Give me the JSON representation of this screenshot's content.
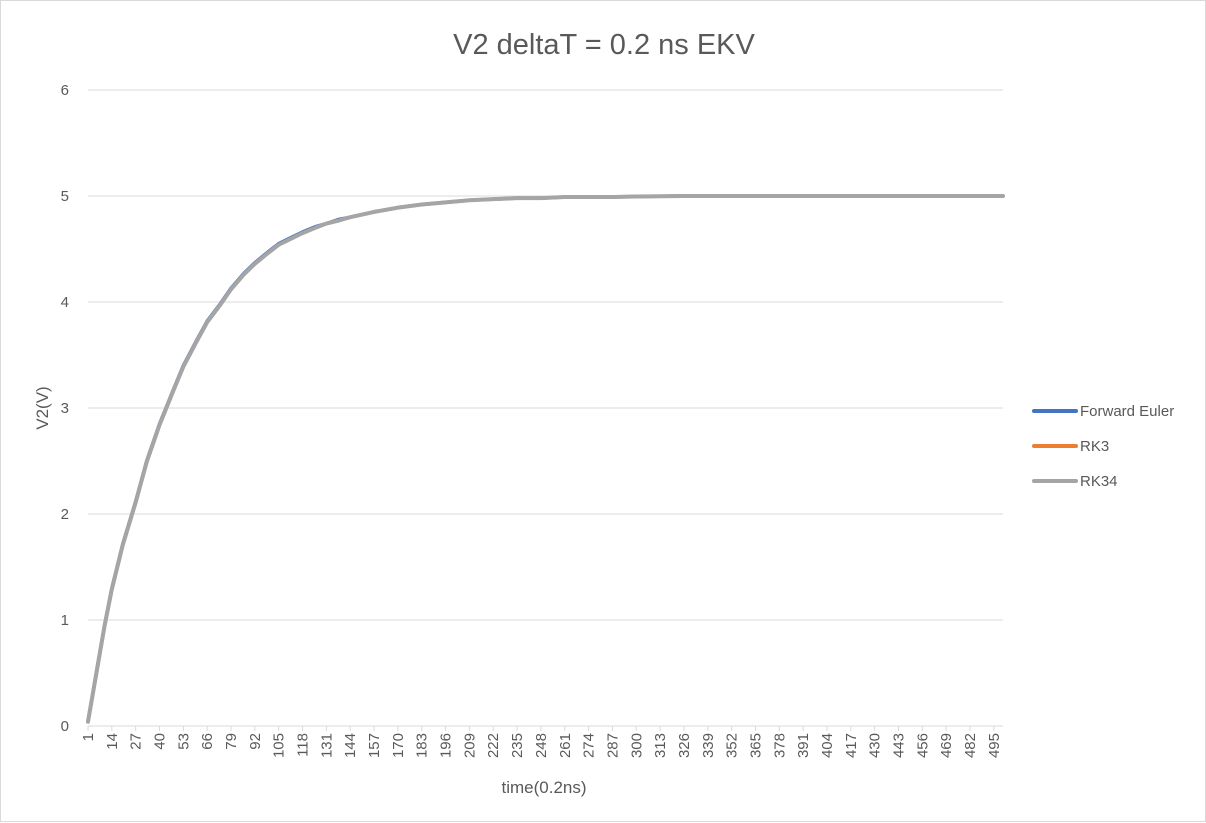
{
  "chart_data": {
    "type": "line",
    "title": "V2 deltaT = 0.2 ns EKV",
    "xlabel": "time(0.2ns)",
    "ylabel": "V2(V)",
    "ylim": [
      0,
      6
    ],
    "yticks": [
      0,
      1,
      2,
      3,
      4,
      5,
      6
    ],
    "xlim": [
      1,
      500
    ],
    "xticks": [
      1,
      14,
      27,
      40,
      53,
      66,
      79,
      92,
      105,
      118,
      131,
      144,
      157,
      170,
      183,
      196,
      209,
      222,
      235,
      248,
      261,
      274,
      287,
      300,
      313,
      326,
      339,
      352,
      365,
      378,
      391,
      404,
      417,
      430,
      443,
      456,
      469,
      482,
      495
    ],
    "grid": "horizontal",
    "legend_position": "right",
    "x": [
      1,
      3,
      6,
      10,
      14,
      20,
      27,
      33,
      40,
      47,
      53,
      60,
      66,
      73,
      79,
      86,
      92,
      99,
      105,
      112,
      118,
      125,
      131,
      138,
      144,
      157,
      170,
      183,
      196,
      209,
      222,
      235,
      248,
      261,
      274,
      287,
      300,
      326,
      352,
      378,
      404,
      430,
      456,
      482,
      500
    ],
    "series": [
      {
        "name": "Forward Euler",
        "color": "#4472C4",
        "values": [
          0.05,
          0.25,
          0.55,
          0.95,
          1.3,
          1.72,
          2.12,
          2.5,
          2.85,
          3.15,
          3.4,
          3.63,
          3.82,
          3.98,
          4.13,
          4.27,
          4.37,
          4.47,
          4.55,
          4.61,
          4.66,
          4.71,
          4.74,
          4.78,
          4.8,
          4.85,
          4.89,
          4.92,
          4.94,
          4.96,
          4.97,
          4.98,
          4.98,
          4.99,
          4.99,
          4.99,
          4.995,
          5.0,
          5.0,
          5.0,
          5.0,
          5.0,
          5.0,
          5.0,
          5.0
        ]
      },
      {
        "name": "RK3",
        "color": "#ED7D31",
        "values": [
          0.04,
          0.24,
          0.54,
          0.94,
          1.29,
          1.71,
          2.11,
          2.49,
          2.84,
          3.14,
          3.39,
          3.62,
          3.81,
          3.97,
          4.12,
          4.26,
          4.36,
          4.46,
          4.54,
          4.6,
          4.65,
          4.7,
          4.74,
          4.77,
          4.8,
          4.85,
          4.89,
          4.92,
          4.94,
          4.96,
          4.97,
          4.98,
          4.98,
          4.99,
          4.99,
          4.99,
          4.995,
          5.0,
          5.0,
          5.0,
          5.0,
          5.0,
          5.0,
          5.0,
          5.0
        ]
      },
      {
        "name": "RK34",
        "color": "#A5A5A5",
        "values": [
          0.04,
          0.24,
          0.54,
          0.94,
          1.29,
          1.71,
          2.11,
          2.49,
          2.84,
          3.14,
          3.39,
          3.62,
          3.81,
          3.97,
          4.12,
          4.26,
          4.36,
          4.46,
          4.54,
          4.6,
          4.65,
          4.7,
          4.74,
          4.77,
          4.8,
          4.85,
          4.89,
          4.92,
          4.94,
          4.96,
          4.97,
          4.98,
          4.98,
          4.99,
          4.99,
          4.99,
          4.995,
          5.0,
          5.0,
          5.0,
          5.0,
          5.0,
          5.0,
          5.0,
          5.0
        ]
      }
    ]
  },
  "colors": {
    "gridline": "#d9d9d9",
    "text": "#595959",
    "axis": "#d9d9d9"
  }
}
